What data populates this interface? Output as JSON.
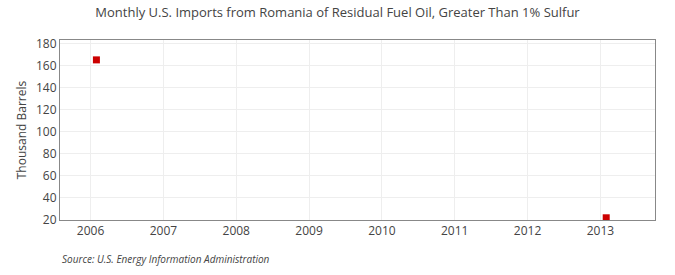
{
  "chart_data": {
    "type": "scatter",
    "title": "Monthly U.S. Imports from Romania of Residual Fuel Oil, Greater Than 1% Sulfur",
    "ylabel": "Thousand Barrels",
    "annotations": [
      "Source: U.S. Energy Information Administration"
    ],
    "x": [
      2006.08,
      2013.08
    ],
    "values": [
      165,
      22
    ],
    "color": "#CC0000",
    "marker": "square",
    "xlim": [
      2005.58,
      2013.75
    ],
    "ylim": [
      20,
      183
    ],
    "xticks": [
      2006,
      2007,
      2008,
      2009,
      2010,
      2011,
      2012,
      2013
    ],
    "yticks": [
      20,
      40,
      60,
      80,
      100,
      120,
      140,
      160,
      180
    ],
    "grid": true
  }
}
